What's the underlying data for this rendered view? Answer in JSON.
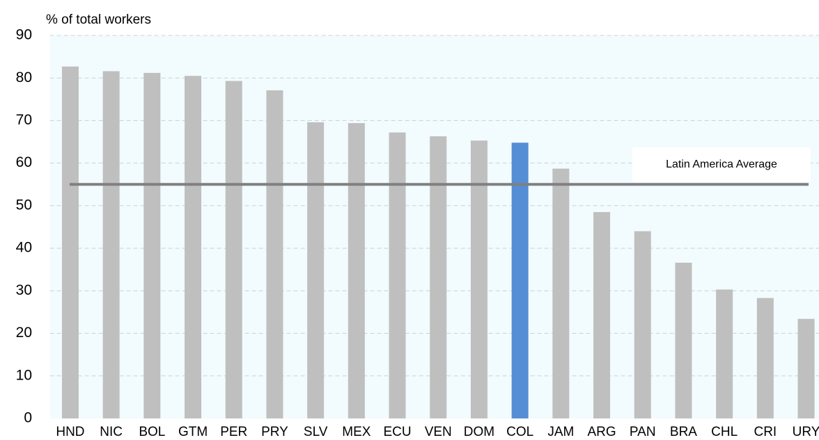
{
  "chart_data": {
    "type": "bar",
    "y_axis_label": "% of total workers",
    "categories": [
      "HND",
      "NIC",
      "BOL",
      "GTM",
      "PER",
      "PRY",
      "SLV",
      "MEX",
      "ECU",
      "VEN",
      "DOM",
      "COL",
      "JAM",
      "ARG",
      "PAN",
      "BRA",
      "CHL",
      "CRI",
      "URY"
    ],
    "values": [
      82.7,
      81.6,
      81.2,
      80.5,
      79.3,
      77.1,
      69.6,
      69.4,
      67.2,
      66.3,
      65.3,
      64.8,
      58.7,
      48.5,
      44.0,
      36.6,
      30.3,
      28.3,
      23.4
    ],
    "colors": [
      "#bfbfbf",
      "#bfbfbf",
      "#bfbfbf",
      "#bfbfbf",
      "#bfbfbf",
      "#bfbfbf",
      "#bfbfbf",
      "#bfbfbf",
      "#bfbfbf",
      "#bfbfbf",
      "#bfbfbf",
      "#558ed5",
      "#bfbfbf",
      "#bfbfbf",
      "#bfbfbf",
      "#bfbfbf",
      "#bfbfbf",
      "#bfbfbf",
      "#bfbfbf"
    ],
    "reference_line": {
      "label": "Latin America  Average",
      "value": 55,
      "color": "#808080"
    },
    "ylim": [
      0,
      90
    ],
    "yticks": [
      0,
      10,
      20,
      30,
      40,
      50,
      60,
      70,
      80,
      90
    ],
    "grid": true
  }
}
